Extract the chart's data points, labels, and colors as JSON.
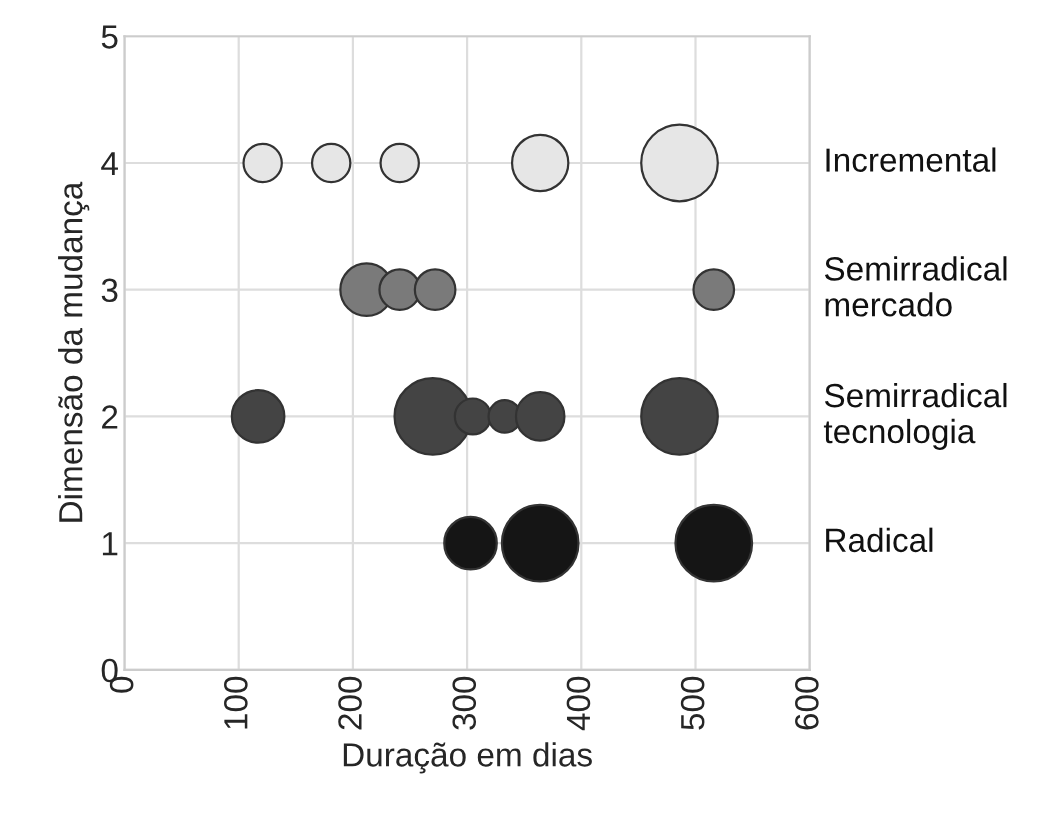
{
  "chart_data": {
    "type": "bubble",
    "xlabel": "Duração em dias",
    "ylabel": "Dimensão da mudança",
    "xlim": [
      0,
      600
    ],
    "xticks": [
      0,
      100,
      200,
      300,
      400,
      500,
      600
    ],
    "ylim": [
      0,
      5
    ],
    "yticks": [
      0,
      1,
      2,
      3,
      4,
      5
    ],
    "grid": true,
    "legend": false,
    "series": [
      {
        "name": "Incremental",
        "color": "#e6e6e6",
        "x": [
          121,
          181,
          241,
          364,
          486
        ],
        "values": [
          4,
          4,
          4,
          4,
          4
        ],
        "sizes": [
          0.25,
          0.25,
          0.25,
          0.54,
          1
        ]
      },
      {
        "name": "Semirradical mercado",
        "color": "#7a7a7a",
        "x": [
          212,
          241,
          272,
          516
        ],
        "values": [
          3,
          3,
          3,
          3
        ],
        "sizes": [
          0.47,
          0.28,
          0.28,
          0.28
        ]
      },
      {
        "name": "Semirradical tecnologia",
        "color": "#444444",
        "x": [
          117,
          270,
          305,
          333,
          364,
          486
        ],
        "values": [
          2,
          2,
          2,
          2,
          2,
          2
        ],
        "sizes": [
          0.47,
          1,
          0.22,
          0.18,
          0.4,
          1
        ]
      },
      {
        "name": "Radical",
        "color": "#151515",
        "x": [
          303,
          364,
          516
        ],
        "values": [
          1,
          1,
          1
        ],
        "sizes": [
          0.47,
          1,
          1
        ]
      }
    ]
  }
}
